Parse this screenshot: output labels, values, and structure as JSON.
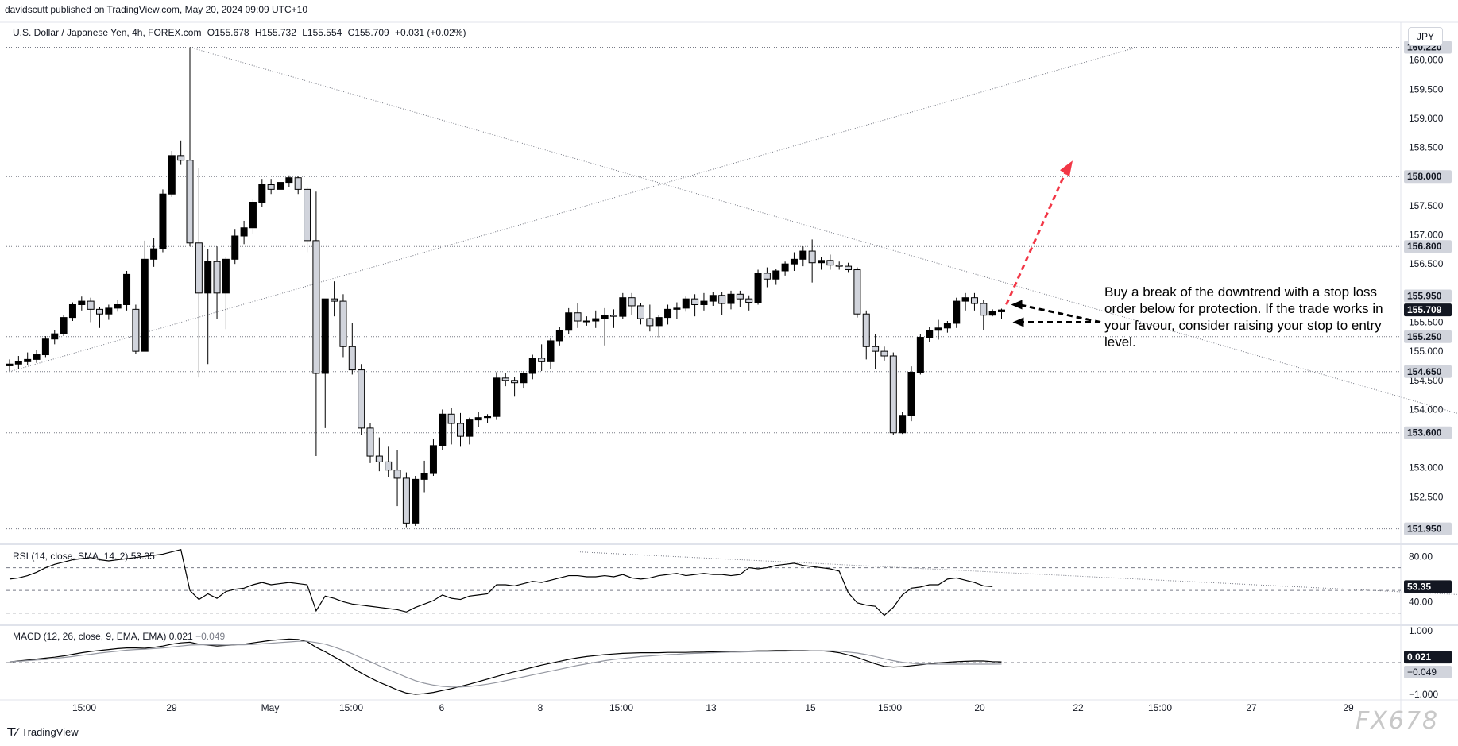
{
  "header": {
    "published_by": "davidscutt published on TradingView.com, May 20, 2024 09:09 UTC+10"
  },
  "legend": {
    "symbol": "U.S. Dollar / Japanese Yen, 4h, FOREX.com",
    "open": "O155.678",
    "high": "H155.732",
    "low": "L155.554",
    "close": "C155.709",
    "change": "+0.031 (+0.02%)"
  },
  "currency_button": "JPY",
  "rsi_legend": {
    "label": "RSI (14, close, SMA, 14, 2)",
    "value": "53.35"
  },
  "macd_legend": {
    "label": "MACD (12, 26, close, 9, EMA, EMA)",
    "value1": "0.021",
    "value2": "−0.049"
  },
  "annotation": "Buy a break of the downtrend with a stop loss order below for protection. If the trade works in your favour, consider raising your stop to entry level.",
  "footer": {
    "brand": "TradingView"
  },
  "watermark": "FX678",
  "colors": {
    "up": "#000000",
    "down": "#d1d4dc",
    "wick": "#000000",
    "arrow_red": "#f23645",
    "arrow_black": "#000000",
    "grid": "#f0f3fa",
    "price_tag": "#131722"
  },
  "chart_data": [
    {
      "type": "candlestick",
      "title": "U.S. Dollar / Japanese Yen, 4h, FOREX.com",
      "ylim": [
        151.7,
        160.35
      ],
      "y_ticks": [
        "152.500",
        "153.000",
        "154.000",
        "154.500",
        "155.000",
        "155.500",
        "156.500",
        "157.000",
        "157.500",
        "158.500",
        "159.000",
        "159.500",
        "160.000"
      ],
      "x_ticks": [
        "15:00",
        "29",
        "May",
        "15:00",
        "6",
        "8",
        "15:00",
        "13",
        "15",
        "15:00",
        "20",
        "22",
        "15:00",
        "27",
        "29"
      ],
      "price_labels": [
        {
          "value": 160.22,
          "label": "160.220"
        },
        {
          "value": 158.0,
          "label": "158.000"
        },
        {
          "value": 156.8,
          "label": "156.800"
        },
        {
          "value": 155.95,
          "label": "155.950"
        },
        {
          "value": 155.709,
          "label": "155.709",
          "current": true
        },
        {
          "value": 155.25,
          "label": "155.250"
        },
        {
          "value": 154.65,
          "label": "154.650"
        },
        {
          "value": 153.6,
          "label": "153.600"
        },
        {
          "value": 151.95,
          "label": "151.950"
        }
      ],
      "horizontal_levels": [
        160.22,
        158.0,
        156.8,
        155.95,
        155.25,
        154.65,
        153.6,
        151.95
      ],
      "candles_ohlc": [
        [
          154.75,
          154.86,
          154.66,
          154.78
        ],
        [
          154.78,
          154.92,
          154.7,
          154.82
        ],
        [
          154.82,
          154.98,
          154.76,
          154.86
        ],
        [
          154.86,
          155.02,
          154.8,
          154.94
        ],
        [
          154.94,
          155.26,
          154.9,
          155.21
        ],
        [
          155.21,
          155.36,
          155.12,
          155.3
        ],
        [
          155.3,
          155.62,
          155.26,
          155.58
        ],
        [
          155.58,
          155.84,
          155.52,
          155.8
        ],
        [
          155.8,
          155.94,
          155.7,
          155.86
        ],
        [
          155.86,
          155.92,
          155.5,
          155.72
        ],
        [
          155.72,
          155.76,
          155.4,
          155.64
        ],
        [
          155.64,
          155.8,
          155.54,
          155.74
        ],
        [
          155.74,
          155.88,
          155.68,
          155.8
        ],
        [
          155.8,
          156.38,
          155.7,
          156.32
        ],
        [
          155.72,
          155.8,
          154.95,
          155.0
        ],
        [
          155.0,
          156.9,
          155.0,
          156.58
        ],
        [
          156.58,
          156.94,
          156.45,
          156.76
        ],
        [
          156.76,
          157.78,
          156.7,
          157.7
        ],
        [
          157.7,
          158.44,
          157.65,
          158.36
        ],
        [
          158.36,
          158.62,
          158.2,
          158.28
        ],
        [
          158.28,
          160.22,
          156.8,
          156.86
        ],
        [
          156.86,
          158.14,
          154.55,
          156.0
        ],
        [
          156.0,
          156.76,
          154.78,
          156.54
        ],
        [
          156.54,
          156.8,
          155.56,
          156.0
        ],
        [
          156.0,
          156.62,
          155.38,
          156.58
        ],
        [
          156.58,
          157.1,
          156.5,
          156.98
        ],
        [
          156.98,
          157.24,
          156.84,
          157.12
        ],
        [
          157.12,
          157.62,
          157.02,
          157.56
        ],
        [
          157.56,
          157.96,
          157.48,
          157.86
        ],
        [
          157.86,
          157.96,
          157.7,
          157.78
        ],
        [
          157.78,
          157.96,
          157.7,
          157.9
        ],
        [
          157.9,
          158.02,
          157.82,
          157.98
        ],
        [
          157.98,
          158.0,
          157.7,
          157.78
        ],
        [
          157.78,
          157.82,
          156.7,
          156.9
        ],
        [
          156.9,
          157.74,
          153.2,
          154.62
        ],
        [
          154.62,
          155.5,
          153.68,
          155.9
        ],
        [
          155.9,
          156.2,
          155.6,
          155.86
        ],
        [
          155.86,
          155.98,
          154.9,
          155.08
        ],
        [
          155.08,
          155.48,
          154.6,
          154.68
        ],
        [
          154.68,
          154.78,
          153.56,
          153.68
        ],
        [
          153.68,
          153.76,
          153.08,
          153.2
        ],
        [
          153.2,
          153.52,
          152.94,
          153.1
        ],
        [
          153.1,
          153.36,
          152.84,
          152.96
        ],
        [
          152.96,
          153.3,
          152.34,
          152.82
        ],
        [
          152.82,
          152.92,
          151.98,
          152.05
        ],
        [
          152.05,
          152.86,
          152.0,
          152.8
        ],
        [
          152.8,
          153.12,
          152.58,
          152.9
        ],
        [
          152.9,
          153.5,
          152.86,
          153.38
        ],
        [
          153.38,
          154.0,
          153.3,
          153.92
        ],
        [
          153.92,
          154.02,
          153.4,
          153.76
        ],
        [
          153.76,
          153.94,
          153.36,
          153.54
        ],
        [
          153.54,
          153.86,
          153.4,
          153.82
        ],
        [
          153.82,
          153.96,
          153.7,
          153.86
        ],
        [
          153.86,
          153.92,
          153.76,
          153.88
        ],
        [
          153.88,
          154.64,
          153.82,
          154.54
        ],
        [
          154.54,
          154.62,
          154.4,
          154.5
        ],
        [
          154.5,
          154.56,
          154.22,
          154.46
        ],
        [
          154.46,
          154.66,
          154.36,
          154.62
        ],
        [
          154.62,
          154.94,
          154.52,
          154.88
        ],
        [
          154.88,
          155.12,
          154.66,
          154.82
        ],
        [
          154.82,
          155.22,
          154.7,
          155.18
        ],
        [
          155.18,
          155.42,
          155.1,
          155.36
        ],
        [
          155.36,
          155.74,
          155.3,
          155.66
        ],
        [
          155.66,
          155.82,
          155.4,
          155.52
        ],
        [
          155.52,
          155.6,
          155.44,
          155.52
        ],
        [
          155.52,
          155.7,
          155.4,
          155.56
        ],
        [
          155.56,
          155.74,
          155.1,
          155.62
        ],
        [
          155.62,
          155.72,
          155.4,
          155.6
        ],
        [
          155.6,
          156.0,
          155.56,
          155.92
        ],
        [
          155.92,
          156.0,
          155.62,
          155.78
        ],
        [
          155.78,
          155.82,
          155.46,
          155.56
        ],
        [
          155.56,
          155.8,
          155.34,
          155.44
        ],
        [
          155.44,
          155.62,
          155.24,
          155.58
        ],
        [
          155.58,
          155.8,
          155.46,
          155.72
        ],
        [
          155.72,
          155.84,
          155.56,
          155.74
        ],
        [
          155.74,
          155.94,
          155.68,
          155.9
        ],
        [
          155.9,
          155.98,
          155.6,
          155.8
        ],
        [
          155.8,
          156.0,
          155.7,
          155.86
        ],
        [
          155.86,
          156.02,
          155.78,
          155.96
        ],
        [
          155.96,
          156.02,
          155.62,
          155.82
        ],
        [
          155.82,
          156.04,
          155.72,
          155.98
        ],
        [
          155.98,
          156.04,
          155.76,
          155.9
        ],
        [
          155.9,
          155.96,
          155.7,
          155.84
        ],
        [
          155.84,
          156.4,
          155.8,
          156.34
        ],
        [
          156.34,
          156.44,
          156.1,
          156.24
        ],
        [
          156.24,
          156.42,
          156.14,
          156.38
        ],
        [
          156.38,
          156.54,
          156.3,
          156.5
        ],
        [
          156.5,
          156.7,
          156.38,
          156.58
        ],
        [
          156.58,
          156.8,
          156.46,
          156.72
        ],
        [
          156.72,
          156.92,
          156.18,
          156.52
        ],
        [
          156.52,
          156.62,
          156.4,
          156.56
        ],
        [
          156.56,
          156.66,
          156.4,
          156.48
        ],
        [
          156.48,
          156.54,
          156.4,
          156.46
        ],
        [
          156.46,
          156.52,
          156.36,
          156.4
        ],
        [
          156.4,
          156.44,
          155.58,
          155.64
        ],
        [
          155.64,
          155.7,
          154.86,
          155.08
        ],
        [
          155.08,
          155.3,
          154.7,
          155.0
        ],
        [
          155.0,
          155.08,
          154.84,
          154.92
        ],
        [
          154.92,
          154.98,
          153.56,
          153.6
        ],
        [
          153.6,
          153.96,
          153.58,
          153.9
        ],
        [
          153.9,
          154.74,
          153.8,
          154.64
        ],
        [
          154.64,
          155.3,
          154.6,
          155.24
        ],
        [
          155.24,
          155.42,
          155.16,
          155.36
        ],
        [
          155.36,
          155.54,
          155.2,
          155.4
        ],
        [
          155.4,
          155.52,
          155.32,
          155.48
        ],
        [
          155.48,
          155.92,
          155.4,
          155.86
        ],
        [
          155.86,
          156.0,
          155.7,
          155.92
        ],
        [
          155.92,
          156.0,
          155.7,
          155.82
        ],
        [
          155.82,
          155.88,
          155.36,
          155.62
        ],
        [
          155.62,
          155.72,
          155.6,
          155.678
        ],
        [
          155.678,
          155.732,
          155.554,
          155.709
        ]
      ],
      "trendlines": [
        {
          "name": "downtrend",
          "from": [
            160.22,
            20
          ],
          "to": [
            153.6,
            168
          ]
        },
        {
          "name": "uptrend",
          "from": [
            154.65,
            0
          ],
          "to": [
            160.22,
            125
          ]
        }
      ]
    },
    {
      "type": "line",
      "title": "RSI (14, close, SMA, 14, 2)",
      "ylim": [
        20,
        90
      ],
      "y_ticks": [
        "80.00",
        "40.00"
      ],
      "levels": [
        70,
        50,
        30
      ],
      "current_value": 53.35,
      "series": [
        {
          "values": [
            60,
            61,
            63,
            66,
            70,
            73,
            75,
            77,
            78,
            79,
            77,
            76,
            77,
            78,
            79,
            80,
            81,
            82,
            84,
            86,
            50,
            42,
            47,
            43,
            49,
            51,
            52,
            55,
            57,
            55,
            56,
            57,
            56,
            55,
            32,
            45,
            43,
            40,
            38,
            37,
            36,
            35,
            34,
            33,
            31,
            35,
            38,
            41,
            46,
            43,
            42,
            45,
            46,
            47,
            55,
            55,
            54,
            56,
            58,
            57,
            59,
            61,
            63,
            63,
            62,
            62,
            63,
            62,
            64,
            61,
            60,
            61,
            63,
            64,
            65,
            63,
            64,
            65,
            64,
            64,
            63,
            64,
            70,
            69,
            70,
            72,
            73,
            74,
            72,
            71,
            70,
            69,
            67,
            48,
            39,
            37,
            36,
            28,
            35,
            46,
            52,
            53,
            55,
            55,
            60,
            61,
            59,
            57,
            54,
            53.35
          ]
        }
      ]
    },
    {
      "type": "line",
      "title": "MACD (12, 26, close, 9, EMA, EMA)",
      "ylim": [
        -1.15,
        1.15
      ],
      "y_ticks": [
        "1.000",
        "−1.000"
      ],
      "series": [
        {
          "values": [
            0.02,
            0.05,
            0.08,
            0.11,
            0.14,
            0.17,
            0.21,
            0.26,
            0.31,
            0.35,
            0.38,
            0.41,
            0.44,
            0.46,
            0.46,
            0.45,
            0.48,
            0.52,
            0.58,
            0.62,
            0.64,
            0.58,
            0.55,
            0.52,
            0.54,
            0.56,
            0.58,
            0.62,
            0.66,
            0.7,
            0.72,
            0.74,
            0.73,
            0.66,
            0.48,
            0.34,
            0.18,
            0.02,
            -0.16,
            -0.33,
            -0.48,
            -0.62,
            -0.74,
            -0.86,
            -0.96,
            -1.0,
            -0.98,
            -0.94,
            -0.88,
            -0.82,
            -0.75,
            -0.68,
            -0.6,
            -0.52,
            -0.44,
            -0.36,
            -0.29,
            -0.22,
            -0.15,
            -0.08,
            -0.02,
            0.04,
            0.1,
            0.15,
            0.19,
            0.22,
            0.25,
            0.27,
            0.29,
            0.3,
            0.31,
            0.31,
            0.31,
            0.32,
            0.32,
            0.32,
            0.33,
            0.33,
            0.34,
            0.34,
            0.35,
            0.36,
            0.36,
            0.37,
            0.37,
            0.38,
            0.38,
            0.38,
            0.38,
            0.37,
            0.37,
            0.35,
            0.31,
            0.24,
            0.16,
            0.06,
            -0.04,
            -0.12,
            -0.14,
            -0.13,
            -0.1,
            -0.07,
            -0.04,
            -0.01,
            0.01,
            0.03,
            0.04,
            0.05,
            0.05,
            0.03,
            0.021
          ]
        },
        {
          "values": [
            0.03,
            0.04,
            0.06,
            0.08,
            0.1,
            0.13,
            0.16,
            0.19,
            0.23,
            0.26,
            0.3,
            0.33,
            0.36,
            0.39,
            0.41,
            0.42,
            0.44,
            0.46,
            0.49,
            0.52,
            0.55,
            0.56,
            0.56,
            0.56,
            0.55,
            0.56,
            0.56,
            0.57,
            0.59,
            0.61,
            0.63,
            0.65,
            0.67,
            0.67,
            0.63,
            0.58,
            0.49,
            0.39,
            0.28,
            0.15,
            0.03,
            -0.1,
            -0.22,
            -0.34,
            -0.46,
            -0.57,
            -0.65,
            -0.71,
            -0.75,
            -0.77,
            -0.77,
            -0.75,
            -0.72,
            -0.68,
            -0.63,
            -0.57,
            -0.51,
            -0.45,
            -0.39,
            -0.33,
            -0.27,
            -0.21,
            -0.15,
            -0.09,
            -0.04,
            0.01,
            0.06,
            0.1,
            0.13,
            0.16,
            0.19,
            0.21,
            0.23,
            0.25,
            0.26,
            0.28,
            0.29,
            0.3,
            0.31,
            0.32,
            0.33,
            0.33,
            0.34,
            0.35,
            0.35,
            0.36,
            0.36,
            0.37,
            0.37,
            0.37,
            0.37,
            0.37,
            0.36,
            0.33,
            0.3,
            0.25,
            0.19,
            0.12,
            0.06,
            0.01,
            -0.02,
            -0.04,
            -0.05,
            -0.05,
            -0.05,
            -0.05,
            -0.05,
            -0.05,
            -0.05,
            -0.05,
            -0.049
          ]
        }
      ]
    }
  ]
}
